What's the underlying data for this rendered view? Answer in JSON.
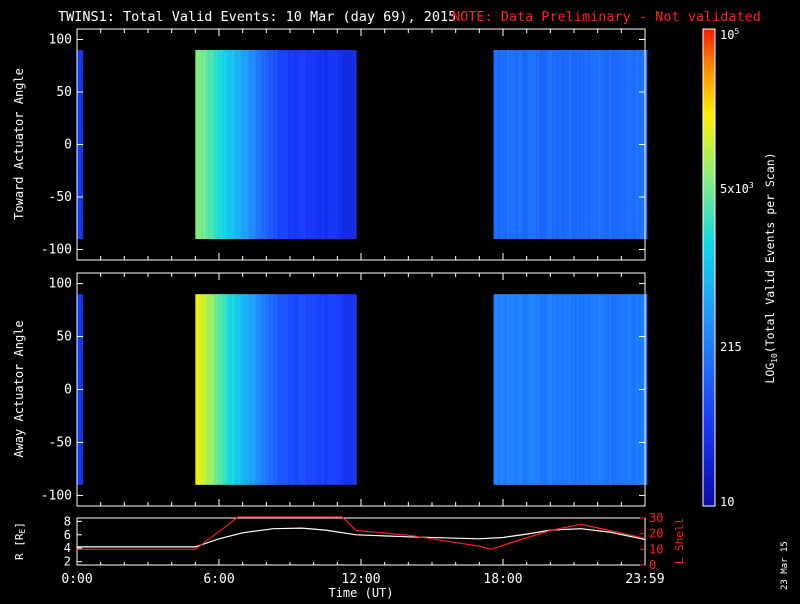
{
  "header": {
    "title": "TWINS1: Total Valid Events: 10 Mar (day  69), 2015",
    "note": "NOTE: Data Preliminary - Not validated"
  },
  "colors": {
    "background": "#000000",
    "note": "#ff2020",
    "lshell": "#ff2020",
    "radius": "#ffffff"
  },
  "footer": {
    "stamp": "23 Mar 15"
  },
  "chart_data": [
    {
      "type": "heatmap",
      "panel": "top",
      "ylabel": "Toward Actuator Angle",
      "ylim": [
        -110,
        110
      ],
      "y_ticks": [
        "100",
        "50",
        "0",
        "-50",
        "-100"
      ],
      "x_range_hours": [
        0,
        24
      ],
      "data_blocks_hours": [
        [
          0,
          0.2
        ],
        [
          5.0,
          11.8
        ],
        [
          17.6,
          24
        ]
      ],
      "description_profile": [
        {
          "t": 0.0,
          "level": 0.1
        },
        {
          "t": 5.0,
          "level": 0.7
        },
        {
          "t": 6.5,
          "level": 0.5
        },
        {
          "t": 8.5,
          "level": 0.2
        },
        {
          "t": 11.8,
          "level": 0.12
        },
        {
          "t": 17.6,
          "level": 0.3
        },
        {
          "t": 24.0,
          "level": 0.3
        }
      ]
    },
    {
      "type": "heatmap",
      "panel": "middle",
      "ylabel": "Away Actuator Angle",
      "ylim": [
        -110,
        110
      ],
      "y_ticks": [
        "100",
        "50",
        "0",
        "-50",
        "-100"
      ],
      "x_range_hours": [
        0,
        24
      ],
      "data_blocks_hours": [
        [
          0,
          0.2
        ],
        [
          5.0,
          11.8
        ],
        [
          17.6,
          24
        ]
      ],
      "description_profile": [
        {
          "t": 0.0,
          "level": 0.1
        },
        {
          "t": 5.0,
          "level": 0.82
        },
        {
          "t": 6.5,
          "level": 0.55
        },
        {
          "t": 8.5,
          "level": 0.25
        },
        {
          "t": 11.8,
          "level": 0.15
        },
        {
          "t": 17.6,
          "level": 0.35
        },
        {
          "t": 24.0,
          "level": 0.32
        }
      ]
    },
    {
      "type": "line",
      "panel": "bottom",
      "xlabel": "Time (UT)",
      "x_ticks": [
        "0:00",
        "6:00",
        "12:00",
        "18:00",
        "23:59"
      ],
      "left_axis": {
        "label": "R [RE]",
        "ticks": [
          "8",
          "6",
          "4",
          "2"
        ],
        "ylim": [
          1.5,
          8.5
        ]
      },
      "right_axis": {
        "label": "L Shell",
        "ticks": [
          "30",
          "20",
          "10",
          "0"
        ],
        "ylim": [
          0,
          30
        ]
      },
      "series": [
        {
          "name": "R",
          "x": [
            0,
            5,
            6,
            7,
            8.3,
            9.5,
            10.5,
            11.8,
            14,
            17,
            18,
            19,
            20,
            21.3,
            22.5,
            24
          ],
          "y": [
            4.2,
            4.2,
            5.4,
            6.3,
            6.9,
            7.0,
            6.7,
            6.0,
            5.7,
            5.4,
            5.6,
            6.1,
            6.7,
            6.9,
            6.4,
            5.3
          ]
        },
        {
          "name": "L Shell",
          "x": [
            0,
            5,
            6.5,
            6.8,
            11.2,
            11.8,
            14,
            17,
            17.5,
            18.5,
            20,
            21.3,
            22.5,
            24
          ],
          "y": [
            10,
            10,
            27,
            31,
            31,
            22,
            19,
            12,
            10,
            15,
            22,
            26,
            22,
            17
          ]
        }
      ]
    },
    {
      "type": "colorbar",
      "label": "LOG10(Total Valid Events per Scan)",
      "label_main": "LOG",
      "label_sub": "10",
      "label_rest": "(Total Valid Events per Scan)",
      "tick_labels": [
        "10",
        "215",
        "5x103",
        "105"
      ],
      "tick_5k_main": "5x10",
      "tick_5k_exp": "3",
      "tick_top_main": "10",
      "tick_top_exp": "5",
      "range": [
        10,
        100000
      ]
    }
  ]
}
